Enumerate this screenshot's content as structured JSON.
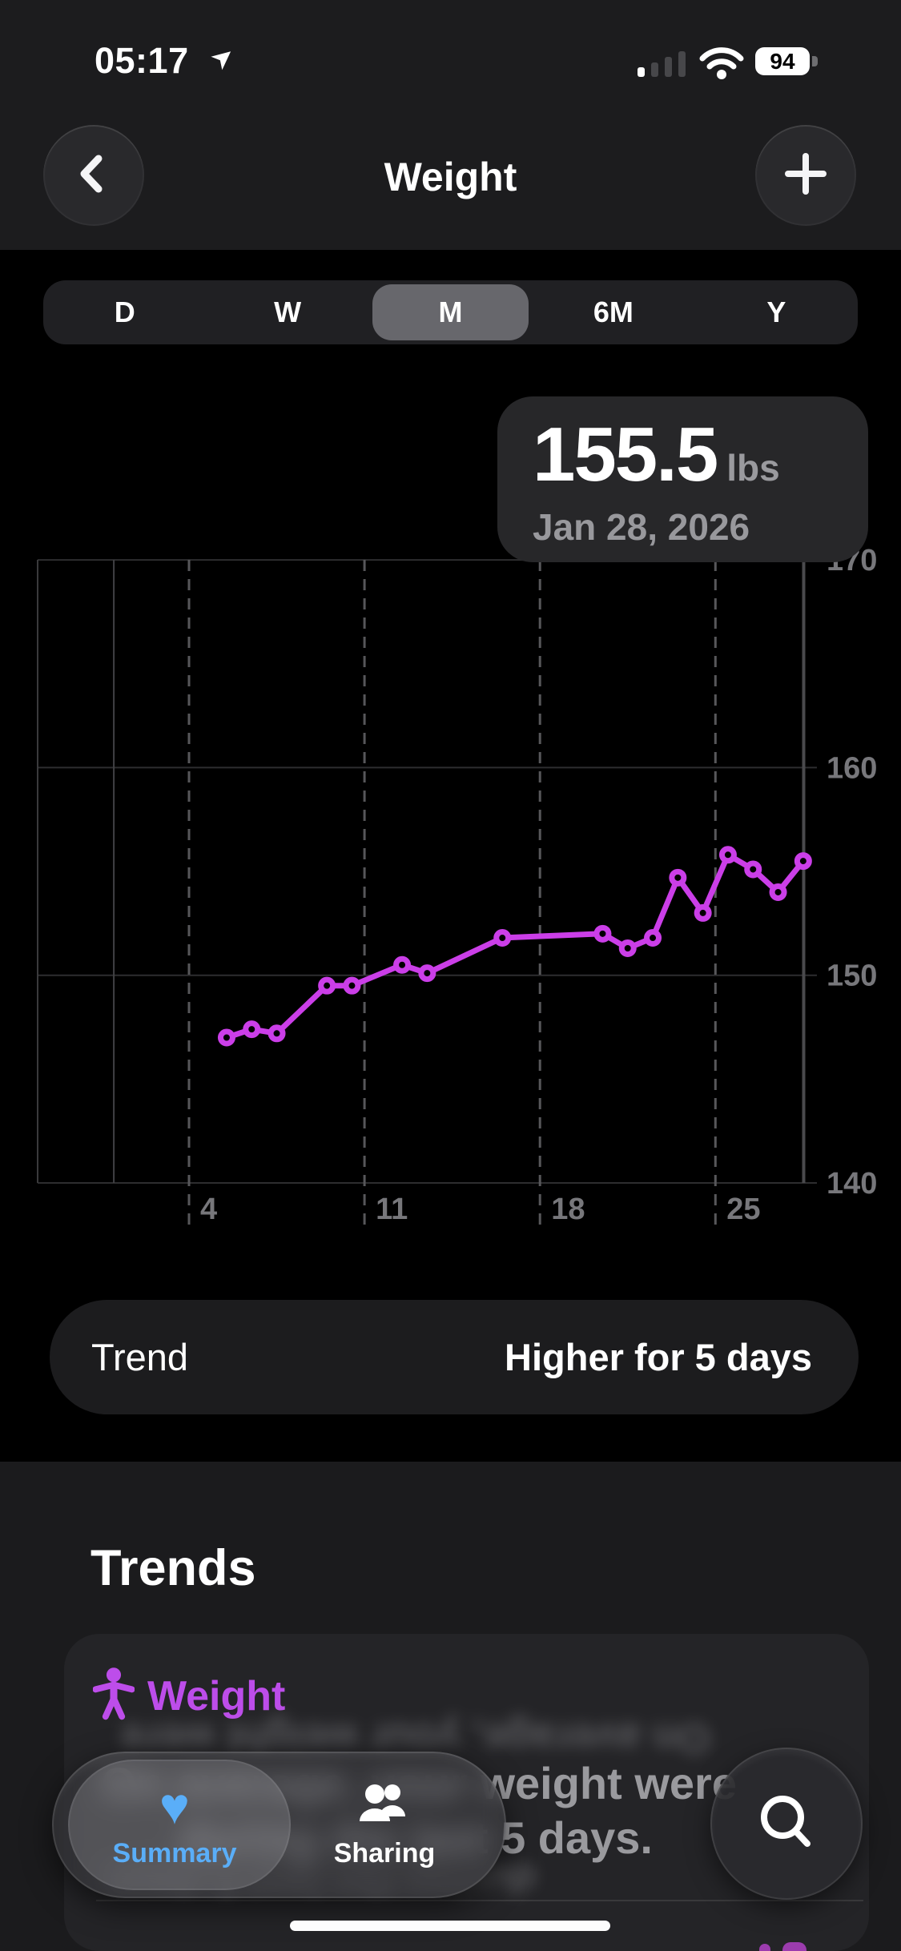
{
  "colors": {
    "line_magenta": "#CB3EE8",
    "category_purple": "#BD4DEA",
    "tab_blue": "#5AAEF8",
    "gridline": "#2D2D2F",
    "dashed_gridline": "#57575A",
    "axis_label": "#77777B",
    "partial_value": "#9C3CAE"
  },
  "status_bar": {
    "time": "05:17",
    "location_icon": "location-arrow",
    "cellular_bars_filled": 1,
    "wifi": "full",
    "battery_percent": "94"
  },
  "nav_bar": {
    "title": "Weight",
    "back_icon": "chevron-left",
    "add_icon": "plus"
  },
  "range_selector": {
    "options": [
      "D",
      "W",
      "M",
      "6M",
      "Y"
    ],
    "selected": "M"
  },
  "callout": {
    "value": "155.5",
    "unit": "lbs",
    "date": "Jan 28, 2026"
  },
  "chart_data": {
    "type": "line",
    "unit": "lbs",
    "month": "January 2026",
    "x": [
      5,
      6,
      7,
      9,
      10,
      12,
      13,
      16,
      20,
      21,
      22,
      23,
      24,
      25,
      26,
      27,
      28
    ],
    "values": [
      147.0,
      147.4,
      147.2,
      149.5,
      149.5,
      150.5,
      150.1,
      151.8,
      152.0,
      151.3,
      151.8,
      154.7,
      153.0,
      155.8,
      155.1,
      154.0,
      155.5
    ],
    "x_tick_days": [
      4,
      11,
      18,
      25
    ],
    "x_tick_labels": [
      "4",
      "11",
      "18",
      "25"
    ],
    "y_ticks": [
      140,
      150,
      160,
      170
    ],
    "ylim": [
      140,
      170
    ],
    "month_start_line_day": 1,
    "selected_point": {
      "x": 28,
      "value": 155.5,
      "date": "Jan 28, 2026"
    },
    "grid": "horizontal solid lines, weekly vertical dashed lines",
    "legend": "none"
  },
  "trend_row": {
    "label": "Trend",
    "value": "Higher for 5 days"
  },
  "trends_section": {
    "heading": "Trends",
    "card": {
      "icon": "accessibility-figure",
      "category": "Weight",
      "description_line1": "On average, your weight were",
      "description_line2": "during the last 5 days.",
      "visible_fragment_line1": "weight wer",
      "visible_fragment_line2": "5 days."
    }
  },
  "tab_bar": {
    "tabs": [
      {
        "label": "Summary",
        "icon": "heart-icon",
        "selected": true
      },
      {
        "label": "Sharing",
        "icon": "people-icon",
        "selected": false
      }
    ],
    "search_icon": "magnifier"
  }
}
